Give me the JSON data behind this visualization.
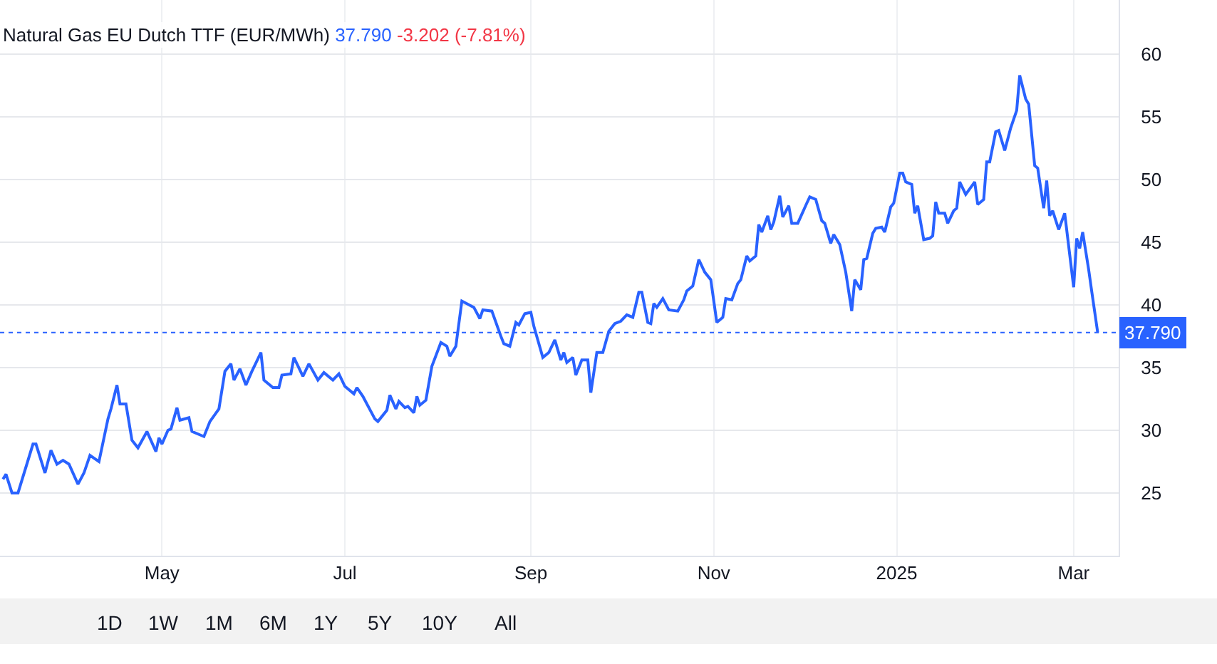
{
  "chart_data": {
    "type": "line",
    "title": "Natural Gas EU Dutch TTF (EUR/MWh)",
    "annotations": [
      "37.790",
      "-3.202 (-7.81%)",
      "1D",
      "1W",
      "1M",
      "6M",
      "1Y",
      "5Y",
      "10Y",
      "All"
    ],
    "x": [
      "2024-03-09",
      "2024-03-10",
      "2024-03-12",
      "2024-03-14",
      "2024-03-19",
      "2024-03-20",
      "2024-03-23",
      "2024-03-25",
      "2024-03-27",
      "2024-03-29",
      "2024-03-31",
      "2024-04-03",
      "2024-04-05",
      "2024-04-07",
      "2024-04-10",
      "2024-04-13",
      "2024-04-14",
      "2024-04-16",
      "2024-04-17",
      "2024-04-19",
      "2024-04-21",
      "2024-04-23",
      "2024-04-26",
      "2024-04-29",
      "2024-04-30",
      "2024-05-01",
      "2024-05-03",
      "2024-05-04",
      "2024-05-06",
      "2024-05-07",
      "2024-05-10",
      "2024-05-11",
      "2024-05-15",
      "2024-05-17",
      "2024-05-20",
      "2024-05-22",
      "2024-05-24",
      "2024-05-25",
      "2024-05-27",
      "2024-05-29",
      "2024-05-31",
      "2024-06-03",
      "2024-06-04",
      "2024-06-07",
      "2024-06-09",
      "2024-06-10",
      "2024-06-13",
      "2024-06-14",
      "2024-06-17",
      "2024-06-19",
      "2024-06-22",
      "2024-06-24",
      "2024-06-27",
      "2024-06-29",
      "2024-07-01",
      "2024-07-04",
      "2024-07-05",
      "2024-07-07",
      "2024-07-11",
      "2024-07-12",
      "2024-07-15",
      "2024-07-16",
      "2024-07-18",
      "2024-07-19",
      "2024-07-21",
      "2024-07-22",
      "2024-07-24",
      "2024-07-25",
      "2024-07-26",
      "2024-07-28",
      "2024-07-30",
      "2024-08-02",
      "2024-08-04",
      "2024-08-05",
      "2024-08-07",
      "2024-08-09",
      "2024-08-13",
      "2024-08-15",
      "2024-08-16",
      "2024-08-19",
      "2024-08-22",
      "2024-08-23",
      "2024-08-25",
      "2024-08-27",
      "2024-08-28",
      "2024-08-30",
      "2024-09-01",
      "2024-09-02",
      "2024-09-05",
      "2024-09-07",
      "2024-09-09",
      "2024-09-11",
      "2024-09-12",
      "2024-09-13",
      "2024-09-15",
      "2024-09-16",
      "2024-09-18",
      "2024-09-20",
      "2024-09-21",
      "2024-09-23",
      "2024-09-25",
      "2024-09-27",
      "2024-09-29",
      "2024-10-01",
      "2024-10-03",
      "2024-10-05",
      "2024-10-07",
      "2024-10-08",
      "2024-10-10",
      "2024-10-11",
      "2024-10-12",
      "2024-10-13",
      "2024-10-15",
      "2024-10-17",
      "2024-10-20",
      "2024-10-22",
      "2024-10-23",
      "2024-10-25",
      "2024-10-27",
      "2024-10-29",
      "2024-10-31",
      "2024-11-02",
      "2024-11-04",
      "2024-11-05",
      "2024-11-07",
      "2024-11-09",
      "2024-11-10",
      "2024-11-12",
      "2024-11-13",
      "2024-11-15",
      "2024-11-16",
      "2024-11-17",
      "2024-11-19",
      "2024-11-20",
      "2024-11-21",
      "2024-11-23",
      "2024-11-24",
      "2024-11-26",
      "2024-11-27",
      "2024-11-29",
      "2024-12-02",
      "2024-12-03",
      "2024-12-05",
      "2024-12-07",
      "2024-12-08",
      "2024-12-10",
      "2024-12-11",
      "2024-12-13",
      "2024-12-15",
      "2024-12-17",
      "2024-12-18",
      "2024-12-20",
      "2024-12-21",
      "2024-12-22",
      "2024-12-24",
      "2024-12-25",
      "2024-12-27",
      "2024-12-28",
      "2024-12-30",
      "2024-12-31",
      "2025-01-02",
      "2025-01-03",
      "2025-01-04",
      "2025-01-06",
      "2025-01-07",
      "2025-01-08",
      "2025-01-10",
      "2025-01-12",
      "2025-01-13",
      "2025-01-14",
      "2025-01-15",
      "2025-01-17",
      "2025-01-18",
      "2025-01-20",
      "2025-01-21",
      "2025-01-22",
      "2025-01-24",
      "2025-01-27",
      "2025-01-28",
      "2025-01-30",
      "2025-01-31",
      "2025-02-01",
      "2025-02-03",
      "2025-02-04",
      "2025-02-06",
      "2025-02-08",
      "2025-02-10",
      "2025-02-11",
      "2025-02-13",
      "2025-02-14",
      "2025-02-16",
      "2025-02-17",
      "2025-02-19",
      "2025-02-20",
      "2025-02-21",
      "2025-02-22",
      "2025-02-24",
      "2025-02-26",
      "2025-03-01",
      "2025-03-02",
      "2025-03-03",
      "2025-03-04",
      "2025-03-06",
      "2025-03-07",
      "2025-03-09"
    ],
    "series": [
      {
        "color": "#2962ff",
        "values": [
          26.1,
          26.5,
          25.0,
          25.0,
          28.9,
          28.9,
          26.6,
          28.4,
          27.3,
          27.6,
          27.3,
          25.7,
          26.6,
          28.0,
          27.5,
          30.9,
          31.7,
          33.6,
          32.1,
          32.1,
          29.2,
          28.6,
          29.9,
          28.3,
          29.4,
          28.9,
          30.0,
          30.1,
          31.8,
          30.8,
          31.0,
          29.9,
          29.5,
          30.7,
          31.7,
          34.7,
          35.3,
          34.0,
          34.9,
          33.6,
          34.7,
          36.2,
          34.0,
          33.4,
          33.4,
          34.4,
          34.5,
          35.8,
          34.3,
          35.3,
          34.0,
          34.6,
          34.0,
          34.5,
          33.5,
          32.9,
          33.4,
          32.7,
          30.9,
          30.7,
          31.6,
          32.8,
          31.7,
          32.3,
          31.8,
          31.9,
          31.4,
          32.7,
          32.0,
          32.4,
          35.1,
          37.0,
          36.7,
          35.9,
          36.7,
          40.3,
          39.8,
          38.9,
          39.6,
          39.5,
          37.5,
          36.9,
          36.7,
          38.6,
          38.4,
          39.3,
          39.4,
          38.3,
          35.8,
          36.2,
          37.2,
          35.6,
          36.2,
          35.4,
          35.8,
          34.4,
          35.6,
          35.6,
          33.0,
          36.2,
          36.2,
          37.9,
          38.5,
          38.7,
          39.2,
          39.0,
          41.0,
          41.0,
          38.6,
          38.5,
          40.1,
          39.8,
          40.5,
          39.6,
          39.5,
          40.4,
          41.1,
          41.5,
          43.6,
          42.6,
          42.0,
          38.6,
          39.0,
          40.5,
          40.4,
          41.7,
          42.0,
          43.9,
          43.5,
          43.9,
          46.4,
          45.8,
          47.1,
          46.0,
          46.6,
          48.7,
          47.0,
          47.9,
          46.5,
          46.5,
          48.1,
          48.6,
          48.4,
          46.7,
          46.5,
          44.9,
          45.6,
          44.8,
          42.6,
          39.5,
          42.0,
          41.2,
          43.6,
          43.7,
          45.7,
          46.1,
          46.2,
          45.8,
          47.8,
          48.1,
          50.5,
          50.5,
          49.8,
          49.6,
          47.3,
          47.9,
          45.2,
          45.3,
          45.5,
          48.2,
          47.3,
          47.3,
          46.5,
          47.5,
          47.7,
          49.8,
          48.8,
          49.8,
          48.0,
          48.4,
          51.4,
          51.4,
          53.8,
          53.9,
          52.3,
          54.1,
          55.5,
          58.3,
          56.4,
          56.0,
          51.1,
          50.9,
          47.7,
          49.9,
          47.1,
          47.5,
          46.0,
          47.3,
          41.4,
          45.3,
          44.5,
          45.8,
          42.8,
          41.1,
          37.79
        ]
      }
    ],
    "xlim": [
      "2024-03-08",
      "2025-03-16"
    ],
    "xticks": [
      {
        "value": "2024-05-01",
        "label": "May"
      },
      {
        "value": "2024-07-01",
        "label": "Jul"
      },
      {
        "value": "2024-09-01",
        "label": "Sep"
      },
      {
        "value": "2024-11-01",
        "label": "Nov"
      },
      {
        "value": "2025-01-01",
        "label": "2025"
      },
      {
        "value": "2025-03-01",
        "label": "Mar"
      }
    ],
    "ylim": [
      20,
      64.3
    ],
    "yticks": [
      25,
      30,
      35,
      40,
      45,
      50,
      55,
      60
    ],
    "ref_lines": [
      {
        "axis": "y",
        "value": 37.79,
        "label": "37.790",
        "color": "#2962ff",
        "line_style": "dotted"
      }
    ],
    "grid": true,
    "marker": "none",
    "line_style": "solid"
  }
}
